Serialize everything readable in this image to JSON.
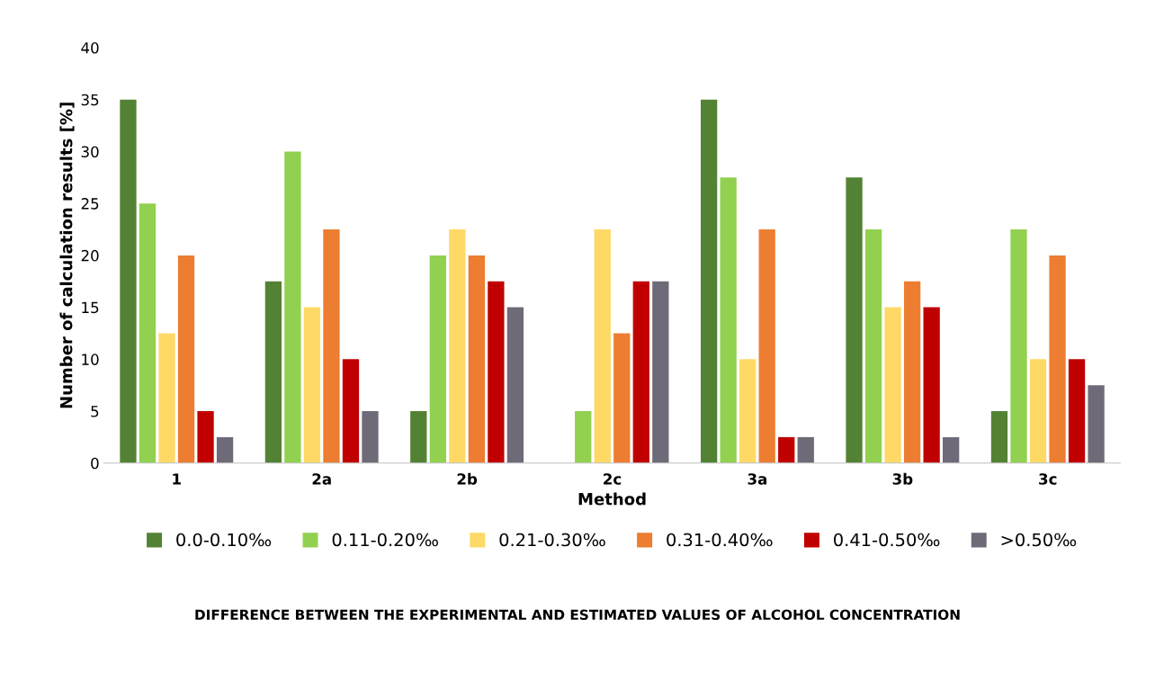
{
  "chart_data": {
    "type": "bar",
    "xlabel": "Method",
    "ylabel": "Number of calculation results [%]",
    "categories": [
      "1",
      "2a",
      "2b",
      "2c",
      "3a",
      "3b",
      "3c"
    ],
    "series": [
      {
        "name": "0.0-0.10‰",
        "color": "#548235",
        "values": [
          35,
          17.5,
          5,
          0,
          35,
          27.5,
          5
        ]
      },
      {
        "name": "0.11-0.20‰",
        "color": "#92d050",
        "values": [
          25,
          30,
          20,
          5,
          27.5,
          22.5,
          22.5
        ]
      },
      {
        "name": "0.21-0.30‰",
        "color": "#ffd966",
        "values": [
          12.5,
          15,
          22.5,
          22.5,
          10,
          15,
          10
        ]
      },
      {
        "name": "0.31-0.40‰",
        "color": "#ed7d31",
        "values": [
          20,
          22.5,
          20,
          12.5,
          22.5,
          17.5,
          20
        ]
      },
      {
        "name": "0.41-0.50‰",
        "color": "#c00000",
        "values": [
          5,
          10,
          17.5,
          17.5,
          2.5,
          15,
          10
        ]
      },
      {
        "name": ">0.50‰",
        "color": "#6e6a78",
        "values": [
          2.5,
          5,
          15,
          17.5,
          2.5,
          2.5,
          7.5
        ]
      }
    ],
    "ylim": [
      0,
      40
    ],
    "yticks": [
      0,
      5,
      10,
      15,
      20,
      25,
      30,
      35,
      40
    ],
    "grid": false,
    "legend": "bottom",
    "annotations": [
      "DIFFERENCE BETWEEN THE EXPERIMENTAL AND ESTIMATED VALUES OF ALCOHOL CONCENTRATION"
    ]
  }
}
